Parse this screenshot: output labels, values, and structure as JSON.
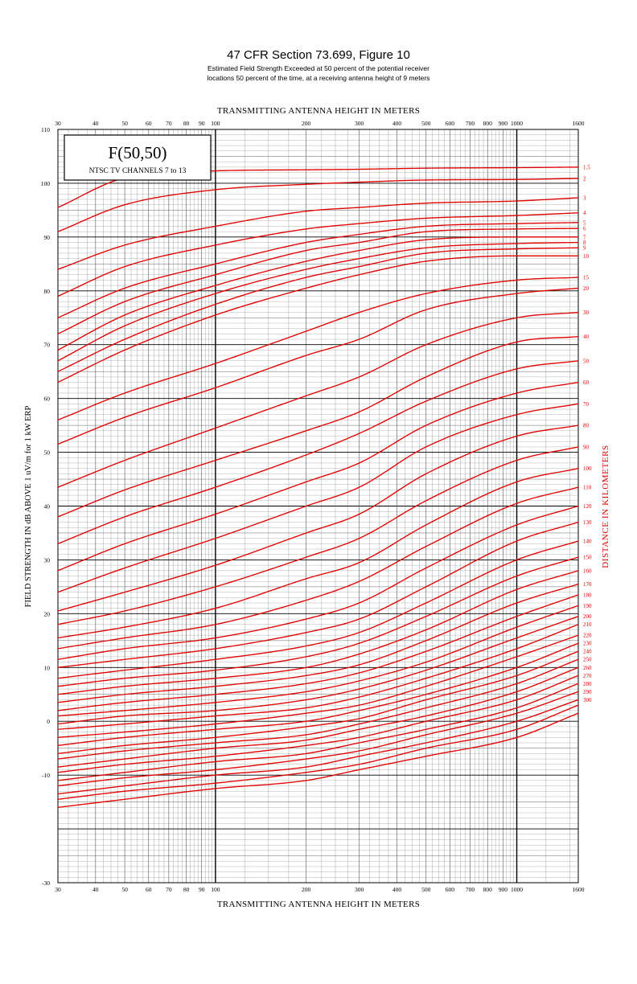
{
  "header": {
    "title": "47 CFR Section 73.699, Figure 10",
    "subtitle_line1": "Estimated Field Strength Exceeded at 50 percent of the potential receiver",
    "subtitle_line2": "locations 50 percent of the time, at a receiving antenna height of 9 meters"
  },
  "legend_box": {
    "title": "F(50,50)",
    "subtitle": "NTSC TV CHANNELS 7 to 13"
  },
  "colors": {
    "grid": "#555555",
    "curve": "#e00000",
    "text": "#000000",
    "curve_label": "#e00000"
  },
  "chart_data": {
    "type": "line",
    "x_scale": "log",
    "xlabel": "TRANSMITTING ANTENNA HEIGHT IN METERS",
    "ylabel": "FIELD STRENGTH IN dB ABOVE 1 uV/m for 1 kW ERP",
    "y2label": "DISTANCE IN KILOMETERS",
    "xlim": [
      30,
      1600
    ],
    "ylim": [
      -30,
      110
    ],
    "x_ticks": [
      "30",
      "40",
      "50",
      "60",
      "70",
      "80",
      "90",
      "100",
      "200",
      "300",
      "400",
      "500",
      "600",
      "700",
      "800",
      "900",
      "1000",
      "1600"
    ],
    "y_ticks": [
      "110",
      "100",
      "90",
      "80",
      "70",
      "60",
      "50",
      "40",
      "30",
      "20",
      "10",
      "0",
      "-10",
      "-30"
    ],
    "grid": true,
    "x": [
      30,
      50,
      100,
      200,
      300,
      500,
      1000,
      1600
    ],
    "series": [
      {
        "name": "1.5",
        "values": [
          95.5,
          101.0,
          102.3,
          102.5,
          102.6,
          102.8,
          102.9,
          103.0
        ]
      },
      {
        "name": "2",
        "values": [
          91.0,
          96.0,
          98.8,
          99.8,
          100.2,
          100.6,
          100.7,
          100.9
        ]
      },
      {
        "name": "3",
        "values": [
          84.0,
          88.5,
          92.0,
          94.8,
          95.5,
          96.3,
          96.7,
          97.3
        ]
      },
      {
        "name": "4",
        "values": [
          79.0,
          84.5,
          88.5,
          91.5,
          92.5,
          93.5,
          94.0,
          94.5
        ]
      },
      {
        "name": "5",
        "values": [
          75.0,
          80.5,
          85.0,
          89.0,
          90.5,
          92.0,
          92.5,
          92.7
        ]
      },
      {
        "name": "6",
        "values": [
          72.0,
          78.0,
          83.0,
          87.5,
          89.0,
          91.0,
          91.5,
          91.6
        ]
      },
      {
        "name": "7",
        "values": [
          69.0,
          75.5,
          81.0,
          85.5,
          87.5,
          89.5,
          90.0,
          90.0
        ]
      },
      {
        "name": "8",
        "values": [
          67.0,
          73.5,
          79.5,
          84.0,
          86.0,
          88.0,
          88.8,
          89.0
        ]
      },
      {
        "name": "9",
        "values": [
          65.0,
          71.0,
          77.5,
          82.5,
          84.5,
          87.0,
          87.8,
          88.0
        ]
      },
      {
        "name": "10",
        "values": [
          63.0,
          69.0,
          75.5,
          80.5,
          83.0,
          85.5,
          86.5,
          86.5
        ]
      },
      {
        "name": "15",
        "values": [
          56.0,
          61.0,
          66.5,
          72.5,
          76.0,
          79.5,
          82.0,
          82.5
        ]
      },
      {
        "name": "20",
        "values": [
          51.5,
          56.5,
          62.0,
          68.0,
          71.0,
          76.5,
          79.5,
          80.5
        ]
      },
      {
        "name": "30",
        "values": [
          43.5,
          48.5,
          54.5,
          60.5,
          64.0,
          70.0,
          75.0,
          76.0
        ]
      },
      {
        "name": "40",
        "values": [
          38.0,
          43.0,
          48.5,
          54.0,
          57.5,
          64.0,
          70.5,
          71.5
        ]
      },
      {
        "name": "50",
        "values": [
          33.0,
          38.0,
          43.5,
          49.5,
          53.5,
          59.5,
          65.5,
          67.0
        ]
      },
      {
        "name": "60",
        "values": [
          28.0,
          33.0,
          38.5,
          44.5,
          48.0,
          55.0,
          61.0,
          63.0
        ]
      },
      {
        "name": "70",
        "values": [
          24.0,
          28.5,
          34.0,
          40.0,
          43.5,
          51.0,
          57.0,
          59.0
        ]
      },
      {
        "name": "80",
        "values": [
          20.5,
          24.0,
          29.0,
          35.0,
          38.5,
          46.0,
          53.0,
          55.0
        ]
      },
      {
        "name": "90",
        "values": [
          18.0,
          20.5,
          25.0,
          30.5,
          34.0,
          41.0,
          48.5,
          51.0
        ]
      },
      {
        "name": "100",
        "values": [
          15.5,
          17.5,
          21.0,
          26.5,
          29.5,
          36.5,
          44.5,
          47.0
        ]
      },
      {
        "name": "110",
        "values": [
          13.5,
          15.5,
          18.0,
          22.5,
          26.0,
          32.5,
          40.5,
          43.5
        ]
      },
      {
        "name": "120",
        "values": [
          11.5,
          13.5,
          15.5,
          19.0,
          22.0,
          28.5,
          36.5,
          40.0
        ]
      },
      {
        "name": "130",
        "values": [
          10.0,
          11.5,
          13.5,
          16.5,
          19.0,
          25.0,
          33.5,
          37.0
        ]
      },
      {
        "name": "140",
        "values": [
          8.0,
          9.5,
          11.5,
          14.0,
          16.5,
          22.0,
          30.0,
          33.5
        ]
      },
      {
        "name": "150",
        "values": [
          6.5,
          8.0,
          9.5,
          12.0,
          14.5,
          19.5,
          27.0,
          30.5
        ]
      },
      {
        "name": "160",
        "values": [
          5.0,
          6.5,
          8.0,
          10.0,
          12.5,
          17.0,
          24.5,
          28.0
        ]
      },
      {
        "name": "170",
        "values": [
          3.5,
          5.0,
          6.5,
          8.5,
          10.5,
          15.0,
          22.0,
          25.5
        ]
      },
      {
        "name": "180",
        "values": [
          2.0,
          3.5,
          5.0,
          7.0,
          9.0,
          13.0,
          19.5,
          23.5
        ]
      },
      {
        "name": "190",
        "values": [
          1.0,
          2.0,
          3.5,
          5.5,
          7.5,
          11.0,
          17.5,
          21.5
        ]
      },
      {
        "name": "200",
        "values": [
          -0.5,
          1.0,
          2.0,
          4.0,
          6.0,
          9.5,
          15.5,
          19.5
        ]
      },
      {
        "name": "210",
        "values": [
          -1.5,
          -0.5,
          1.0,
          2.5,
          4.5,
          8.0,
          13.5,
          18.0
        ]
      },
      {
        "name": "220",
        "values": [
          -3.0,
          -2.0,
          -0.5,
          1.5,
          3.0,
          6.5,
          12.0,
          16.0
        ]
      },
      {
        "name": "230",
        "values": [
          -4.5,
          -3.0,
          -1.5,
          0.0,
          2.0,
          5.0,
          10.0,
          14.5
        ]
      },
      {
        "name": "240",
        "values": [
          -6.0,
          -4.5,
          -3.0,
          -1.0,
          0.5,
          4.0,
          8.5,
          13.0
        ]
      },
      {
        "name": "250",
        "values": [
          -7.0,
          -5.5,
          -4.0,
          -2.5,
          -0.5,
          2.5,
          7.0,
          11.5
        ]
      },
      {
        "name": "260",
        "values": [
          -8.5,
          -7.0,
          -5.0,
          -3.5,
          -1.5,
          1.0,
          5.5,
          10.0
        ]
      },
      {
        "name": "270",
        "values": [
          -9.5,
          -8.0,
          -6.5,
          -4.5,
          -3.0,
          0.0,
          4.0,
          8.5
        ]
      },
      {
        "name": "280",
        "values": [
          -11.0,
          -9.5,
          -7.5,
          -6.0,
          -4.0,
          -1.5,
          2.5,
          7.0
        ]
      },
      {
        "name": "290",
        "values": [
          -12.0,
          -10.5,
          -9.0,
          -7.0,
          -5.5,
          -2.5,
          1.5,
          5.5
        ]
      },
      {
        "name": "300",
        "values": [
          -13.5,
          -12.0,
          -10.0,
          -8.5,
          -6.5,
          -4.0,
          0.0,
          4.0
        ]
      },
      {
        "name": "",
        "values": [
          -14.5,
          -13.0,
          -11.5,
          -9.5,
          -8.0,
          -5.0,
          -1.5,
          3.0
        ]
      },
      {
        "name": "",
        "values": [
          -16.0,
          -14.5,
          -12.5,
          -11.0,
          -9.0,
          -6.5,
          -3.0,
          1.5
        ]
      }
    ]
  }
}
